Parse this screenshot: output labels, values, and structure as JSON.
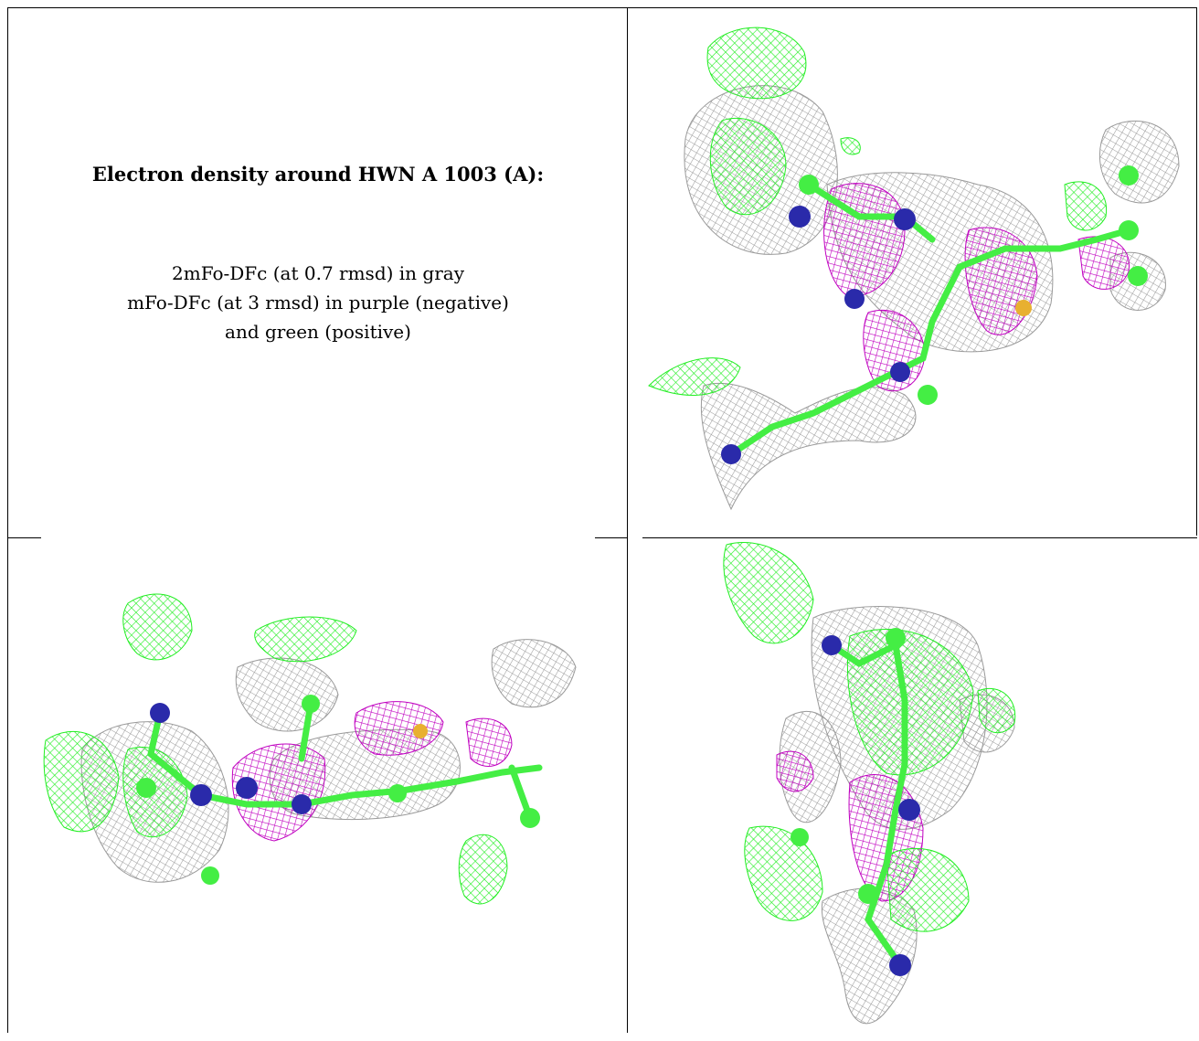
{
  "caption": {
    "title": "Electron density around HWN A 1003 (A):",
    "line1": "2mFo-DFc (at 0.7 rmsd) in gray",
    "line2": "mFo-DFc (at 3 rmsd) in purple (negative)",
    "line3": "and green (positive)"
  },
  "colors": {
    "gray_density": "#9a9a9a",
    "negative_density": "#c000c0",
    "positive_density": "#22ee22",
    "nitrogen": "#2a2aaa",
    "carbon": "#44ee44",
    "sulfur": "#e8b030"
  }
}
